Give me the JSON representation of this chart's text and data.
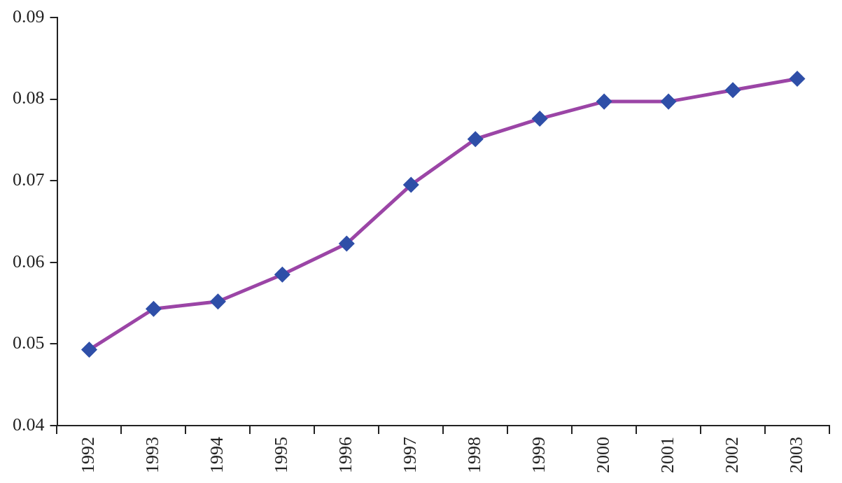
{
  "chart_data": {
    "type": "line",
    "categories": [
      "1992",
      "1993",
      "1994",
      "1995",
      "1996",
      "1997",
      "1998",
      "1999",
      "2000",
      "2001",
      "2002",
      "2003"
    ],
    "series": [
      {
        "color": "#9b45a6",
        "colors": [
          "#2f4fa8",
          "#2f4fa8",
          "#2f4fa8",
          "#2f4fa8",
          "#2f4fa8",
          "#2f4fa8",
          "#2f4fa8",
          "#2f4fa8",
          "#2f4fa8",
          "#2f4fa8",
          "#2f4fa8",
          "#2f4fa8"
        ],
        "values": [
          0.0493,
          0.0543,
          0.0552,
          0.0585,
          0.0623,
          0.0695,
          0.0751,
          0.0776,
          0.0797,
          0.0797,
          0.0811,
          0.0825
        ]
      }
    ],
    "marker": "diamond",
    "line_style": "solid",
    "ylim": [
      0.04,
      0.09
    ],
    "yticks": [
      0.04,
      0.05,
      0.06,
      0.07,
      0.08,
      0.09
    ],
    "grid": false,
    "legend": false
  }
}
